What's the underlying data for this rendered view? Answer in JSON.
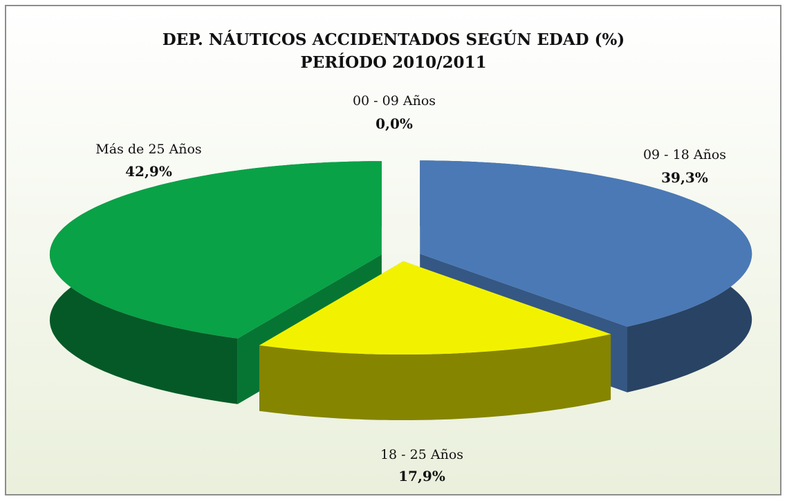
{
  "chart_data": {
    "type": "pie",
    "title": [
      "DEP. NÁUTICOS ACCIDENTADOS SEGÚN EDAD (%)",
      "PERÍODO 2010/2011"
    ],
    "categories": [
      "00 - 09 Años",
      "09 - 18 Años",
      "18 - 25 Años",
      "Más de 25 Años"
    ],
    "values": [
      0.0,
      39.3,
      17.9,
      42.9
    ],
    "value_labels": [
      "0,0%",
      "39,3%",
      "17,9%",
      "42,9%"
    ],
    "colors": [
      "#c0504d",
      "#4a79b6",
      "#f2f200",
      "#09a247"
    ]
  }
}
